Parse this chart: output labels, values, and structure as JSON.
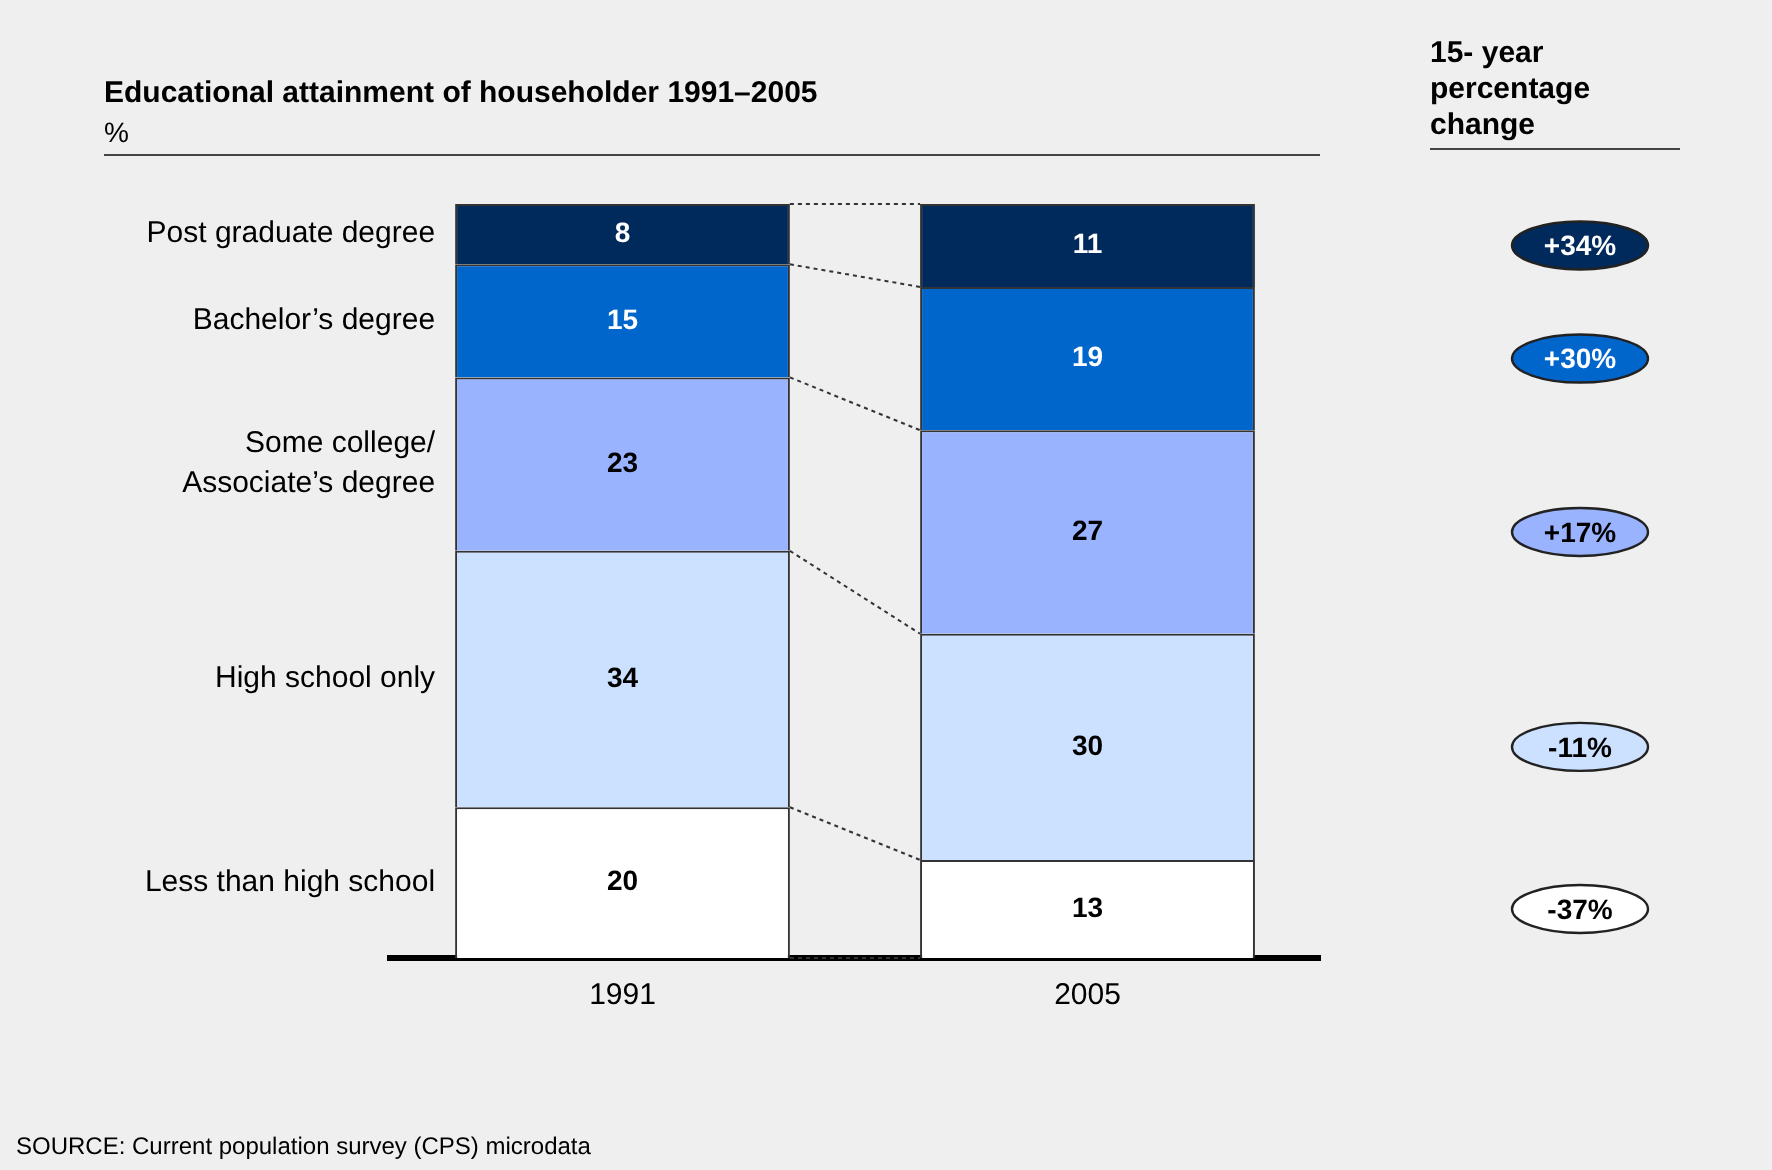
{
  "chart_data": {
    "type": "bar",
    "stacked": true,
    "title": "Educational attainment of householder 1991–2005",
    "subtitle": "%",
    "categories": [
      "1991",
      "2005"
    ],
    "series": [
      {
        "name": "Less than high school",
        "color": "#ffffff",
        "values": [
          20,
          13
        ]
      },
      {
        "name": "High school only",
        "color": "#cce0ff",
        "values": [
          34,
          30
        ]
      },
      {
        "name": "Some college/ Associate’s degree",
        "color": "#99b3ff",
        "values": [
          23,
          27
        ]
      },
      {
        "name": "Bachelor’s degree",
        "color": "#0066cc",
        "values": [
          15,
          19
        ]
      },
      {
        "name": "Post graduate degree",
        "color": "#002a5c",
        "values": [
          8,
          11
        ]
      }
    ],
    "data_labels": true,
    "legend": false,
    "grid": false,
    "tick_labels": "x",
    "annotations": [
      "15- year percentage change",
      "+34%",
      "+30%",
      "+17%",
      "-11%",
      "-37%",
      "SOURCE: Current population survey (CPS) microdata"
    ]
  }
}
